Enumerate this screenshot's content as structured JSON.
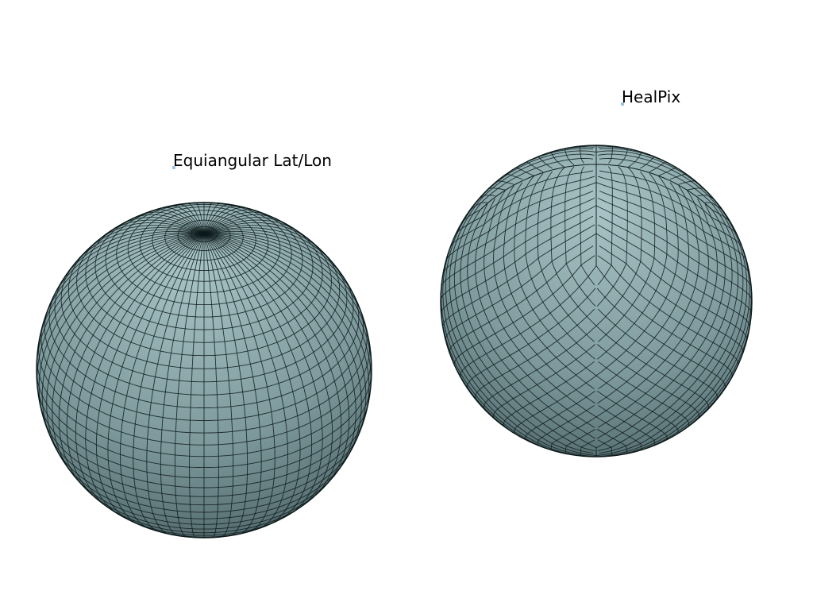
{
  "meshes": [
    {
      "id": "latlon",
      "label": "Equiangular Lat/Lon",
      "grid": "latlon",
      "lat_divisions": 40,
      "lon_divisions": 72
    },
    {
      "id": "healpix",
      "label": "HealPix",
      "grid": "healpix",
      "nside": 12
    }
  ],
  "colors": {
    "background": "#ffffff",
    "surface_light": "#a8c4c6",
    "surface_mid": "#7d999c",
    "surface_dark": "#3f5558",
    "grid_line": "#0d1a1b",
    "label_text": "#000000",
    "label_marker": "#9fc4d8"
  }
}
